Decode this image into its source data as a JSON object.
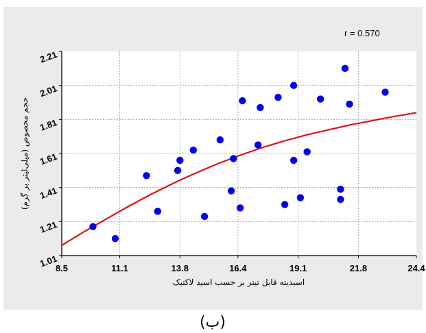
{
  "chart_data": {
    "type": "scatter",
    "title": "",
    "annotation": "r = 0.570",
    "xlabel": "اسیدیته قابل تیتر بر حسب اسید لاکتیک",
    "ylabel": "حجم مخصوص (میلی‌لیتر بر گرم)",
    "caption": "(ب)",
    "xlim": [
      8.5,
      24.4
    ],
    "ylim": [
      1.01,
      2.21
    ],
    "xticks": [
      "8.5",
      "11.1",
      "13.8",
      "16.4",
      "19.1",
      "21.8",
      "24.4"
    ],
    "yticks": [
      "1.01",
      "1.21",
      "1.41",
      "1.61",
      "1.81",
      "2.01",
      "2.21"
    ],
    "xtick_values": [
      8.5,
      11.1,
      13.8,
      16.4,
      19.1,
      21.8,
      24.4
    ],
    "ytick_values": [
      1.01,
      1.21,
      1.41,
      1.61,
      1.81,
      2.01,
      2.21
    ],
    "grid": true,
    "points": [
      {
        "x": 9.9,
        "y": 1.18
      },
      {
        "x": 10.9,
        "y": 1.11
      },
      {
        "x": 12.3,
        "y": 1.48
      },
      {
        "x": 12.8,
        "y": 1.27
      },
      {
        "x": 13.7,
        "y": 1.51
      },
      {
        "x": 13.8,
        "y": 1.57
      },
      {
        "x": 14.4,
        "y": 1.63
      },
      {
        "x": 14.9,
        "y": 1.24
      },
      {
        "x": 15.6,
        "y": 1.69
      },
      {
        "x": 16.1,
        "y": 1.39
      },
      {
        "x": 16.2,
        "y": 1.58
      },
      {
        "x": 16.5,
        "y": 1.29
      },
      {
        "x": 16.6,
        "y": 1.92
      },
      {
        "x": 17.3,
        "y": 1.66
      },
      {
        "x": 17.4,
        "y": 1.88
      },
      {
        "x": 18.2,
        "y": 1.94
      },
      {
        "x": 18.5,
        "y": 1.31
      },
      {
        "x": 18.9,
        "y": 1.57
      },
      {
        "x": 18.9,
        "y": 2.01
      },
      {
        "x": 19.2,
        "y": 1.35
      },
      {
        "x": 19.5,
        "y": 1.62
      },
      {
        "x": 20.1,
        "y": 1.93
      },
      {
        "x": 21.0,
        "y": 1.4
      },
      {
        "x": 21.0,
        "y": 1.34
      },
      {
        "x": 21.2,
        "y": 2.11
      },
      {
        "x": 21.4,
        "y": 1.9
      },
      {
        "x": 23.0,
        "y": 1.97
      }
    ],
    "trend_curve": [
      {
        "x": 8.5,
        "y": 1.07
      },
      {
        "x": 9.5,
        "y": 1.15
      },
      {
        "x": 10.5,
        "y": 1.225
      },
      {
        "x": 11.5,
        "y": 1.3
      },
      {
        "x": 12.5,
        "y": 1.37
      },
      {
        "x": 13.5,
        "y": 1.435
      },
      {
        "x": 14.5,
        "y": 1.495
      },
      {
        "x": 15.5,
        "y": 1.55
      },
      {
        "x": 16.5,
        "y": 1.6
      },
      {
        "x": 17.5,
        "y": 1.645
      },
      {
        "x": 18.5,
        "y": 1.685
      },
      {
        "x": 19.5,
        "y": 1.72
      },
      {
        "x": 20.5,
        "y": 1.75
      },
      {
        "x": 21.5,
        "y": 1.78
      },
      {
        "x": 22.5,
        "y": 1.805
      },
      {
        "x": 23.5,
        "y": 1.83
      },
      {
        "x": 24.4,
        "y": 1.85
      }
    ],
    "colors": {
      "background": "#ebebeb",
      "point": "#0000ee",
      "curve": "#dd1111",
      "grid": "#9a9a9a"
    }
  }
}
